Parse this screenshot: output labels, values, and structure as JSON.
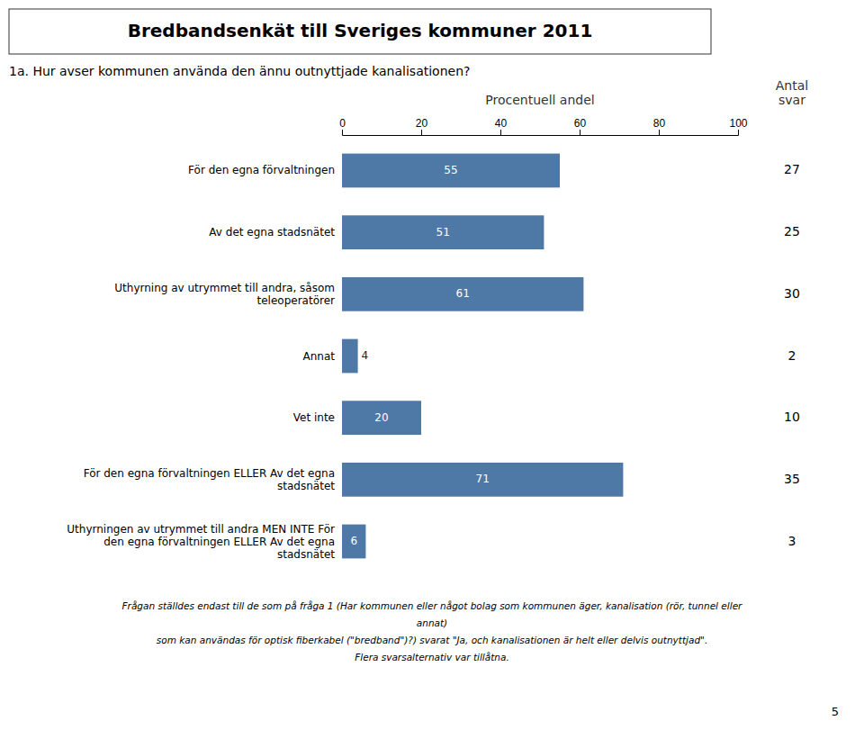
{
  "chart_data": {
    "type": "bar",
    "orientation": "horizontal",
    "title": "Bredbandsenkät till Sveriges kommuner 2011",
    "subtitle": "1a. Hur avser kommunen använda den ännu outnyttjade kanalisationen?",
    "header_procentuell": "Procentuell andel",
    "header_antal": "Antal\nsvar",
    "categories": [
      "För den egna förvaltningen",
      "Av det egna stadsnätet",
      "Uthyrning av utrymmet till andra, såsom\nteleoperatörer",
      "Annat",
      "Vet inte",
      "För den egna förvaltningen ELLER Av det egna\nstadsnätet",
      "Uthyrningen av utrymmet till andra MEN INTE För\nden egna förvaltningen ELLER Av det egna\nstadsnätet"
    ],
    "values": [
      55,
      51,
      61,
      4,
      20,
      71,
      6
    ],
    "antal": [
      27,
      25,
      30,
      2,
      10,
      35,
      3
    ],
    "data_labels": true,
    "grid": false,
    "xlim": [
      0,
      100
    ],
    "xticks": [
      0,
      20,
      40,
      60,
      80,
      100
    ],
    "footnotes": [
      "Frågan ställdes endast till de som på fråga 1 (Har kommunen eller något bolag som kommunen äger, kanalisation (rör, tunnel eller",
      "annat)",
      "som kan användas för optisk fiberkabel (\"bredband\")?) svarat \"Ja, och kanalisationen är helt eller delvis outnyttjad\".",
      "Flera svarsalternativ var tillåtna."
    ],
    "page_number": "5"
  }
}
